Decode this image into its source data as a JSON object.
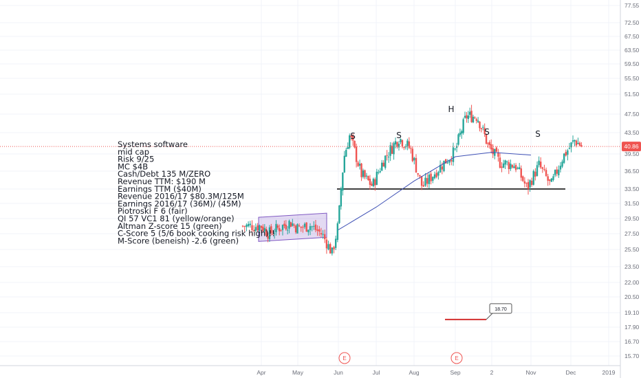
{
  "notes": [
    "Systems software",
    "mid cap",
    "Risk 9/25",
    "MC $4B",
    "Cash/Debt 135 M/ZERO",
    "Revenue TTM: $190 M",
    "Earnings TTM ($40M)",
    "Revenue 2016/17 $80.3M/125M",
    "Earnings 2016/17 (36M)/ (45M)",
    "Piotroski F 6 (fair)",
    "QI 57 VC1 81 (yellow/orange)",
    "Altman Z-score 15 (green)",
    "C-Score 5 (5/6 book cooking risk high)!!",
    "M-Score (beneish) -2.6 (green)"
  ],
  "pattern_labels": [
    "S",
    "S",
    "H",
    "S",
    "S"
  ],
  "earnings_markers": [
    "E",
    "E"
  ],
  "price_label": "40.86",
  "callout_label": "18.70",
  "colors": {
    "up": "#26a69a",
    "down": "#ef5350",
    "moving_average": "#3f51b5",
    "box_fill": "rgba(126,87,194,0.22)",
    "box_stroke": "#7e57c2",
    "neckline": "#000000",
    "price_line": "#ef5350",
    "price_label_bg": "#ef5350",
    "earnings": "#ef5350",
    "grid": "#f0f3fa"
  },
  "chart_data": {
    "type": "candlestick",
    "x_ticks": [
      "Apr",
      "May",
      "Jun",
      "Jul",
      "Aug",
      "Sep",
      "2",
      "Nov",
      "Dec",
      "2019"
    ],
    "y_ticks": [
      77.55,
      72.5,
      67.5,
      63.5,
      59.5,
      55.5,
      51.5,
      47.5,
      43.5,
      39.5,
      36.5,
      33.5,
      31.5,
      29.5,
      27.5,
      25.5,
      23.5,
      22.0,
      20.5,
      19.1,
      17.9,
      16.7,
      15.7
    ],
    "scale": "log",
    "last_price": 40.86,
    "neckline": 33.5,
    "callout_value": 18.7,
    "channel": {
      "start": "Apr",
      "end": "May",
      "high": 30.2,
      "low": 26.5
    },
    "moving_average": [
      {
        "t": "Jun",
        "v": 28.0
      },
      {
        "t": "Jul",
        "v": 31.0
      },
      {
        "t": "Aug",
        "v": 34.8
      },
      {
        "t": "Sep",
        "v": 39.0
      },
      {
        "t": "2",
        "v": 39.8
      },
      {
        "t": "Nov",
        "v": 39.3
      }
    ],
    "closes": [
      {
        "t": 0.0,
        "v": 28.5
      },
      {
        "t": 0.2,
        "v": 27.5
      },
      {
        "t": 0.5,
        "v": 28.3
      },
      {
        "t": 0.8,
        "v": 29.0
      },
      {
        "t": 1.0,
        "v": 28.2
      },
      {
        "t": 1.3,
        "v": 28.6
      },
      {
        "t": 1.6,
        "v": 27.4
      },
      {
        "t": 1.85,
        "v": 25.0
      },
      {
        "t": 2.0,
        "v": 28.8
      },
      {
        "t": 2.15,
        "v": 39.0
      },
      {
        "t": 2.3,
        "v": 43.0
      },
      {
        "t": 2.6,
        "v": 36.0
      },
      {
        "t": 2.9,
        "v": 34.0
      },
      {
        "t": 3.2,
        "v": 38.5
      },
      {
        "t": 3.6,
        "v": 42.5
      },
      {
        "t": 3.9,
        "v": 40.5
      },
      {
        "t": 4.2,
        "v": 33.8
      },
      {
        "t": 4.6,
        "v": 37.0
      },
      {
        "t": 5.0,
        "v": 40.0
      },
      {
        "t": 5.3,
        "v": 47.0
      },
      {
        "t": 5.6,
        "v": 47.0
      },
      {
        "t": 5.9,
        "v": 41.0
      },
      {
        "t": 6.2,
        "v": 38.0
      },
      {
        "t": 6.6,
        "v": 37.5
      },
      {
        "t": 6.9,
        "v": 33.6
      },
      {
        "t": 7.2,
        "v": 37.5
      },
      {
        "t": 7.5,
        "v": 34.0
      },
      {
        "t": 7.8,
        "v": 39.0
      },
      {
        "t": 8.1,
        "v": 42.0
      },
      {
        "t": 8.3,
        "v": 40.86
      }
    ]
  }
}
